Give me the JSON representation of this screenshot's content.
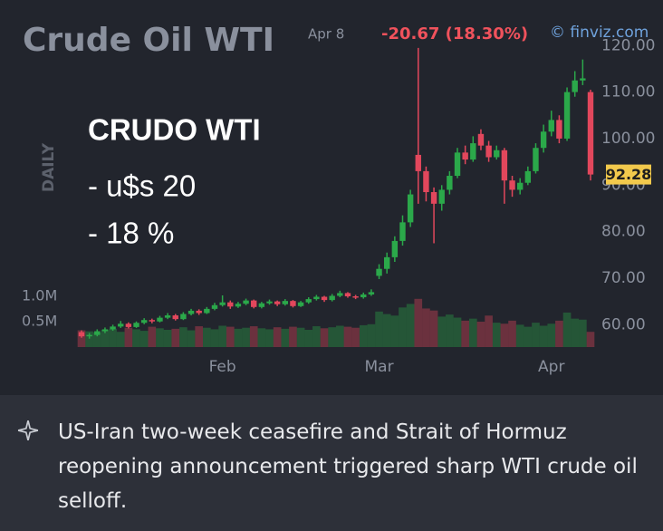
{
  "chart_data": {
    "type": "candlestick",
    "title": "Crude Oil WTI",
    "date_label": "Apr 8",
    "change_label": "-20.67 (18.30%)",
    "source": "© finviz.com",
    "period": "DAILY",
    "annotations": [
      "CRUDO WTI",
      "- u$s 20",
      "- 18 %"
    ],
    "categories": [
      null,
      null,
      null,
      null,
      null,
      null,
      null,
      null,
      null,
      null,
      null,
      null,
      null,
      null,
      null,
      null,
      null,
      null,
      "Feb",
      null,
      null,
      null,
      null,
      null,
      null,
      null,
      null,
      null,
      null,
      null,
      null,
      null,
      null,
      null,
      null,
      null,
      null,
      null,
      "Mar",
      null,
      null,
      null,
      null,
      null,
      null,
      null,
      null,
      null,
      null,
      null,
      null,
      null,
      null,
      null,
      null,
      null,
      null,
      null,
      null,
      null,
      "Apr",
      null,
      null,
      null,
      null,
      null
    ],
    "open": [
      58.4,
      57.5,
      57.8,
      58.6,
      59.0,
      59.6,
      60.2,
      59.5,
      60.4,
      61.0,
      60.7,
      61.5,
      62.0,
      61.2,
      62.3,
      63.0,
      62.5,
      63.4,
      64.2,
      64.8,
      63.9,
      64.5,
      65.2,
      63.8,
      64.6,
      65.0,
      64.4,
      65.1,
      64.0,
      64.8,
      65.5,
      66.0,
      65.3,
      66.2,
      66.8,
      66.1,
      65.9,
      66.5,
      70.5,
      72.0,
      74.5,
      78.0,
      82.0,
      96.5,
      93.0,
      88.5,
      86.0,
      89.0,
      92.0,
      97.0,
      95.5,
      101.0,
      98.5,
      96.0,
      97.5,
      91.0,
      89.0,
      90.5,
      93.0,
      98.0,
      101.5,
      104.0,
      100.0,
      110.0,
      112.5,
      110.0
    ],
    "high": [
      58.8,
      58.2,
      59.0,
      59.4,
      60.0,
      60.8,
      60.5,
      60.7,
      61.4,
      61.3,
      61.9,
      62.5,
      62.3,
      62.7,
      63.4,
      63.3,
      63.8,
      64.7,
      66.3,
      65.2,
      64.9,
      65.6,
      65.4,
      64.9,
      65.4,
      65.2,
      65.5,
      65.3,
      65.1,
      65.9,
      66.4,
      66.2,
      66.6,
      67.3,
      67.0,
      66.4,
      66.9,
      67.6,
      73.0,
      75.5,
      79.0,
      83.5,
      89.0,
      119.5,
      94.0,
      89.5,
      90.0,
      93.0,
      98.0,
      98.5,
      100.5,
      102.0,
      99.5,
      98.5,
      98.0,
      92.0,
      91.5,
      94.0,
      99.0,
      103.0,
      106.0,
      105.0,
      111.0,
      114.5,
      117.0,
      110.5
    ],
    "low": [
      57.2,
      57.0,
      57.5,
      58.2,
      58.7,
      59.3,
      59.2,
      59.3,
      60.1,
      60.3,
      60.5,
      61.2,
      60.9,
      61.0,
      62.0,
      62.1,
      62.3,
      63.1,
      63.9,
      63.4,
      63.6,
      64.2,
      63.5,
      63.5,
      64.3,
      64.0,
      64.1,
      63.7,
      63.8,
      64.5,
      65.2,
      64.9,
      65.0,
      65.9,
      65.8,
      65.5,
      65.6,
      66.2,
      69.8,
      71.0,
      73.5,
      77.0,
      81.0,
      86.0,
      86.5,
      77.5,
      84.5,
      88.0,
      91.5,
      94.5,
      95.0,
      97.5,
      95.0,
      95.5,
      86.0,
      87.5,
      88.0,
      90.0,
      92.5,
      97.0,
      100.5,
      99.0,
      99.5,
      109.0,
      111.5,
      91.0
    ],
    "close": [
      57.5,
      57.8,
      58.6,
      59.0,
      59.6,
      60.2,
      59.5,
      60.4,
      61.0,
      60.7,
      61.5,
      62.0,
      61.2,
      62.3,
      63.0,
      62.5,
      63.4,
      64.2,
      64.8,
      63.9,
      64.5,
      65.2,
      63.8,
      64.6,
      65.0,
      64.4,
      65.1,
      64.0,
      64.8,
      65.5,
      66.0,
      65.3,
      66.2,
      66.8,
      66.1,
      65.9,
      66.5,
      67.0,
      72.0,
      74.5,
      78.0,
      82.0,
      88.0,
      93.0,
      88.5,
      86.0,
      89.0,
      92.0,
      97.0,
      95.5,
      99.0,
      98.5,
      96.0,
      97.5,
      91.0,
      89.0,
      90.5,
      93.0,
      98.0,
      101.5,
      104.0,
      100.0,
      110.0,
      112.5,
      112.95,
      92.28
    ],
    "volume": [
      330000,
      310000,
      290000,
      340000,
      360000,
      300000,
      380000,
      350000,
      320000,
      400000,
      370000,
      340000,
      360000,
      390000,
      330000,
      410000,
      380000,
      350000,
      420000,
      400000,
      360000,
      380000,
      410000,
      370000,
      350000,
      390000,
      360000,
      400000,
      380000,
      340000,
      410000,
      370000,
      390000,
      420000,
      400000,
      380000,
      430000,
      450000,
      700000,
      650000,
      620000,
      780000,
      850000,
      950000,
      760000,
      720000,
      600000,
      640000,
      580000,
      520000,
      560000,
      500000,
      620000,
      480000,
      460000,
      520000,
      440000,
      400000,
      480000,
      420000,
      460000,
      520000,
      680000,
      560000,
      540000,
      300000
    ],
    "up_color": "#2ba84a",
    "down_color": "#e2475c",
    "ylim": [
      55,
      122
    ],
    "yticks": [
      {
        "value": 60,
        "label": "60.00"
      },
      {
        "value": 70,
        "label": "70.00"
      },
      {
        "value": 80,
        "label": "80.00"
      },
      {
        "value": 90,
        "label": "90.00"
      },
      {
        "value": 100,
        "label": "100.00"
      },
      {
        "value": 110,
        "label": "110.00"
      },
      {
        "value": 120,
        "label": "120.00"
      }
    ],
    "volume_lim": [
      0,
      1000000
    ],
    "volume_ticks": [
      {
        "value": 500000,
        "label": "0.5M"
      },
      {
        "value": 1000000,
        "label": "1.0M"
      }
    ]
  },
  "caption": "US-Iran two-week ceasefire and Strait of Hormuz reopening announcement triggered sharp WTI crude oil selloff."
}
